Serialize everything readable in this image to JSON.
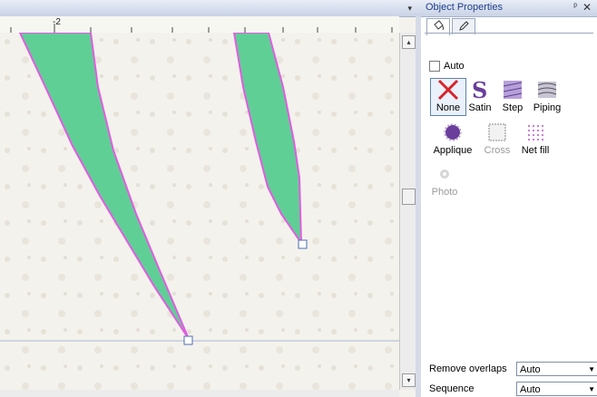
{
  "canvas": {
    "ruler_label": "-2",
    "ruler_dropdown_glyph": "▾",
    "scroll_up_glyph": "▴",
    "scroll_down_glyph": "▾"
  },
  "panel": {
    "title": "Object Properties",
    "pin_glyph": "ᵖ",
    "close_glyph": "✕",
    "auto_label": "Auto",
    "fill_types": [
      {
        "label": "None",
        "icon": "none-x-icon"
      },
      {
        "label": "Satin",
        "icon": "satin-s-icon"
      },
      {
        "label": "Step",
        "icon": "step-fill-icon"
      },
      {
        "label": "Piping",
        "icon": "piping-icon"
      },
      {
        "label": "Applique",
        "icon": "applique-icon"
      },
      {
        "label": "Cross",
        "icon": "cross-stitch-icon"
      },
      {
        "label": "Net fill",
        "icon": "net-fill-icon"
      },
      {
        "label": "Photo",
        "icon": "photo-icon"
      }
    ],
    "remove_overlaps": {
      "label": "Remove overlaps",
      "value": "Auto"
    },
    "sequence": {
      "label": "Sequence",
      "value": "Auto"
    }
  },
  "colors": {
    "shape_fill": "#5fcf96",
    "shape_outline": "#e25ce0",
    "title_text": "#1e3f8a"
  }
}
